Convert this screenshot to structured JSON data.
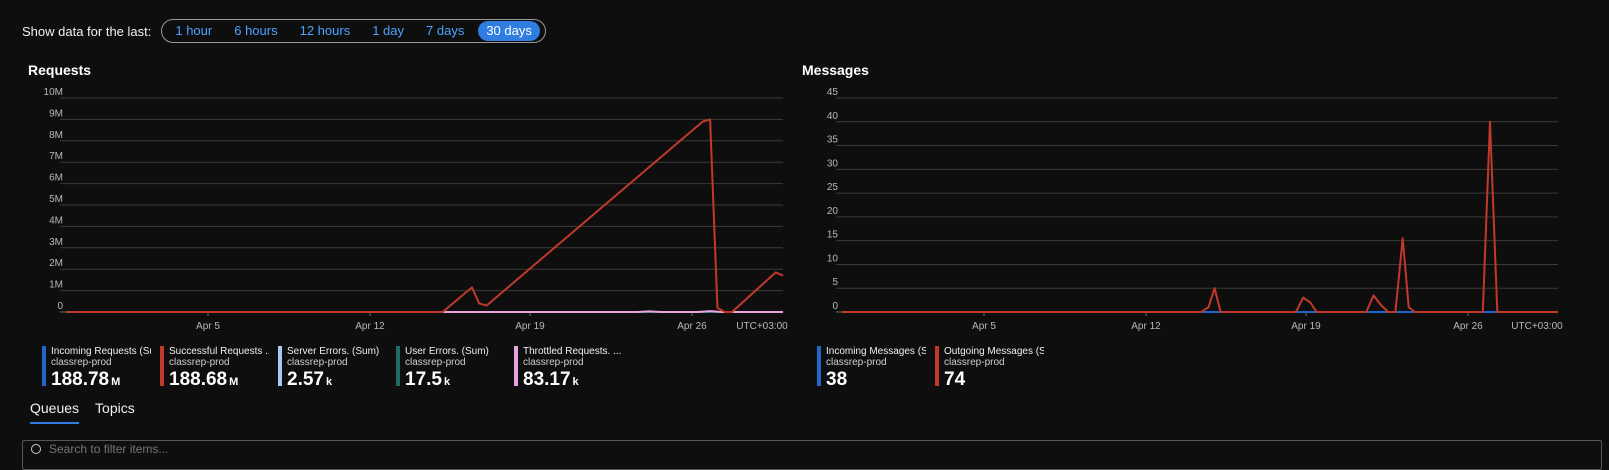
{
  "timebar": {
    "label": "Show data for the last:",
    "options": [
      "1 hour",
      "6 hours",
      "12 hours",
      "1 day",
      "7 days",
      "30 days"
    ],
    "selected": "30 days"
  },
  "tabs": [
    "Queues",
    "Topics"
  ],
  "filter": {
    "placeholder": "Search to filter items..."
  },
  "chart_data": [
    {
      "type": "line",
      "title": "Requests",
      "x_ticks": [
        "Apr 5",
        "Apr 12",
        "Apr 19",
        "Apr 26"
      ],
      "x_range": [
        "Mar 31",
        "Apr 29"
      ],
      "timezone": "UTC+03:00",
      "y_ticks": [
        "0",
        "1M",
        "2M",
        "3M",
        "4M",
        "5M",
        "6M",
        "7M",
        "8M",
        "9M",
        "10M"
      ],
      "ylim": [
        0,
        10000000
      ],
      "grid": true,
      "series": [
        {
          "name": "Incoming Requests (Sum)",
          "color": "#1f66c8",
          "points": [
            [
              0,
              0
            ],
            [
              29.5,
              0
            ]
          ]
        },
        {
          "name": "Successful Requests (Sum)",
          "color": "#c0392b",
          "points": [
            [
              0,
              0
            ],
            [
              15.5,
              0
            ],
            [
              16.7,
              1150000
            ],
            [
              17.0,
              400000
            ],
            [
              17.3,
              300000
            ],
            [
              26.2,
              8900000
            ],
            [
              26.5,
              9000000
            ],
            [
              26.8,
              200000
            ],
            [
              27.1,
              0
            ],
            [
              27.4,
              0
            ],
            [
              29.2,
              1850000
            ],
            [
              29.5,
              1700000
            ]
          ]
        },
        {
          "name": "Server Errors. (Sum)",
          "color": "#a8c8f0",
          "points": [
            [
              0,
              0
            ],
            [
              29.5,
              0
            ]
          ]
        },
        {
          "name": "User Errors. (Sum)",
          "color": "#1c6e66",
          "points": [
            [
              0,
              0
            ],
            [
              29.5,
              0
            ]
          ]
        },
        {
          "name": "Throttled Requests. (Sum)",
          "color": "#e8a4e0",
          "points": [
            [
              0,
              0
            ],
            [
              23.5,
              0
            ],
            [
              24.0,
              30000
            ],
            [
              24.5,
              0
            ],
            [
              26.0,
              0
            ],
            [
              26.5,
              40000
            ],
            [
              27.0,
              0
            ],
            [
              29.5,
              0
            ]
          ]
        }
      ],
      "legend": [
        {
          "name": "Incoming Requests (Sum)",
          "sub": "classrep-prod",
          "value": "188.78",
          "unit": "M",
          "color": "#1f66c8"
        },
        {
          "name": "Successful Requests ...",
          "sub": "classrep-prod",
          "value": "188.68",
          "unit": "M",
          "color": "#c0392b"
        },
        {
          "name": "Server Errors. (Sum)",
          "sub": "classrep-prod",
          "value": "2.57",
          "unit": "k",
          "color": "#a8c8f0"
        },
        {
          "name": "User Errors. (Sum)",
          "sub": "classrep-prod",
          "value": "17.5",
          "unit": "k",
          "color": "#1c6e66"
        },
        {
          "name": "Throttled Requests. ...",
          "sub": "classrep-prod",
          "value": "83.17",
          "unit": "k",
          "color": "#e8a4e0"
        }
      ]
    },
    {
      "type": "line",
      "title": "Messages",
      "x_ticks": [
        "Apr 5",
        "Apr 12",
        "Apr 19",
        "Apr 26"
      ],
      "x_range": [
        "Mar 31",
        "Apr 29"
      ],
      "timezone": "UTC+03:00",
      "y_ticks": [
        "0",
        "5",
        "10",
        "15",
        "20",
        "25",
        "30",
        "35",
        "40",
        "45"
      ],
      "ylim": [
        0,
        45
      ],
      "grid": true,
      "series": [
        {
          "name": "Incoming Messages (Sum)",
          "color": "#1f66c8",
          "points": [
            [
              0,
              0
            ],
            [
              29.5,
              0
            ]
          ]
        },
        {
          "name": "Outgoing Messages (Sum)",
          "color": "#c0392b",
          "points": [
            [
              0,
              0
            ],
            [
              14.8,
              0
            ],
            [
              15.1,
              1
            ],
            [
              15.35,
              5
            ],
            [
              15.6,
              0
            ],
            [
              18.7,
              0
            ],
            [
              19.0,
              3
            ],
            [
              19.3,
              2
            ],
            [
              19.55,
              0
            ],
            [
              21.6,
              0
            ],
            [
              21.9,
              3.5
            ],
            [
              22.2,
              1.5
            ],
            [
              22.5,
              0
            ],
            [
              22.8,
              0
            ],
            [
              23.1,
              15.5
            ],
            [
              23.35,
              1
            ],
            [
              23.6,
              0
            ],
            [
              26.4,
              0
            ],
            [
              26.7,
              40
            ],
            [
              27.0,
              0
            ],
            [
              29.5,
              0
            ]
          ]
        }
      ],
      "legend": [
        {
          "name": "Incoming Messages (Sum)",
          "sub": "classrep-prod",
          "value": "38",
          "unit": "",
          "color": "#1f66c8"
        },
        {
          "name": "Outgoing Messages (Sum)",
          "sub": "classrep-prod",
          "value": "74",
          "unit": "",
          "color": "#c0392b"
        }
      ]
    }
  ]
}
